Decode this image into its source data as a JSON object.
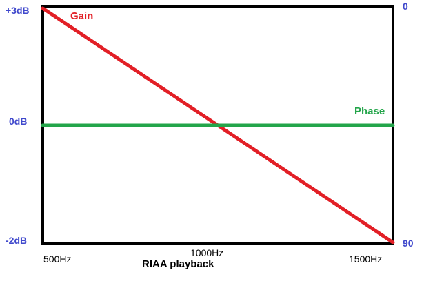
{
  "chart_data": {
    "type": "line",
    "title": "RIAA playback",
    "x_ticks": [
      "500Hz",
      "1000Hz",
      "1500Hz"
    ],
    "xlim": [
      500,
      1500
    ],
    "left_axis": {
      "ticks": [
        "+3dB",
        "0dB",
        "-2dB"
      ],
      "range": [
        -2,
        3
      ],
      "unit": "dB",
      "tick_values": [
        3,
        0,
        -2
      ]
    },
    "right_axis": {
      "ticks": [
        "0",
        "90"
      ],
      "range": [
        90,
        0
      ],
      "tick_values": [
        0,
        90
      ]
    },
    "series": [
      {
        "name": "Gain",
        "axis": "left",
        "color": "#e21f26",
        "x": [
          500,
          1500
        ],
        "y": [
          3,
          -2
        ]
      },
      {
        "name": "Phase",
        "axis": "right",
        "color": "#23a54a",
        "x": [
          500,
          1500
        ],
        "y": [
          45,
          45
        ]
      }
    ],
    "grid": false,
    "legend": "inline labels"
  },
  "colors": {
    "frame": "#000000",
    "axis_label": "#3f48cc",
    "title_text": "#000000",
    "tick_text": "#000000"
  }
}
